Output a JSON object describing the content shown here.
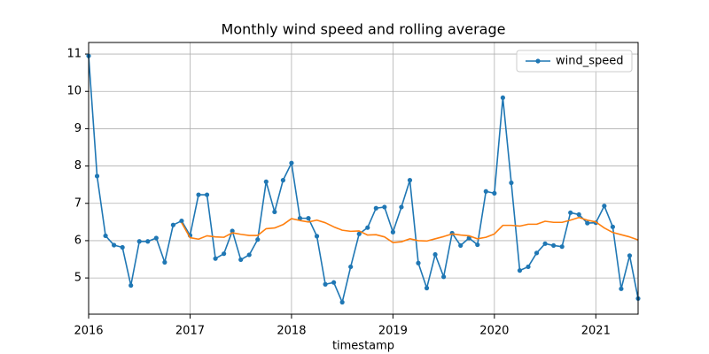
{
  "chart_data": {
    "type": "line",
    "title": "Monthly wind speed and rolling average",
    "xlabel": "timestamp",
    "x": [
      "2016-01",
      "2016-02",
      "2016-03",
      "2016-04",
      "2016-05",
      "2016-06",
      "2016-07",
      "2016-08",
      "2016-09",
      "2016-10",
      "2016-11",
      "2016-12",
      "2017-01",
      "2017-02",
      "2017-03",
      "2017-04",
      "2017-05",
      "2017-06",
      "2017-07",
      "2017-08",
      "2017-09",
      "2017-10",
      "2017-11",
      "2017-12",
      "2018-01",
      "2018-02",
      "2018-03",
      "2018-04",
      "2018-05",
      "2018-06",
      "2018-07",
      "2018-08",
      "2018-09",
      "2018-10",
      "2018-11",
      "2018-12",
      "2019-01",
      "2019-02",
      "2019-03",
      "2019-04",
      "2019-05",
      "2019-06",
      "2019-07",
      "2019-08",
      "2019-09",
      "2019-10",
      "2019-11",
      "2019-12",
      "2020-01",
      "2020-02",
      "2020-03",
      "2020-04",
      "2020-05",
      "2020-06",
      "2020-07",
      "2020-08",
      "2020-09",
      "2020-10",
      "2020-11",
      "2020-12",
      "2021-01",
      "2021-02",
      "2021-03",
      "2021-04",
      "2021-05",
      "2021-06"
    ],
    "series": [
      {
        "name": "wind_speed",
        "color": "#1f77b4",
        "marker": true,
        "values": [
          10.95,
          7.73,
          6.13,
          5.88,
          5.82,
          4.8,
          5.98,
          5.98,
          6.07,
          5.42,
          6.42,
          6.53,
          6.14,
          7.23,
          7.23,
          5.52,
          5.65,
          6.26,
          5.49,
          5.62,
          6.03,
          7.58,
          6.77,
          7.62,
          8.08,
          6.6,
          6.6,
          6.12,
          4.83,
          4.88,
          4.35,
          5.3,
          6.18,
          6.35,
          6.87,
          6.9,
          6.23,
          6.9,
          7.62,
          5.4,
          4.73,
          5.63,
          5.03,
          6.2,
          5.87,
          6.07,
          5.89,
          7.32,
          7.27,
          9.83,
          7.55,
          5.2,
          5.3,
          5.67,
          5.92,
          5.87,
          5.84,
          6.75,
          6.7,
          6.47,
          6.48,
          6.93,
          6.37,
          4.71,
          5.6,
          4.45
        ]
      },
      {
        "color": "#ff7f0e",
        "marker": false,
        "values": [
          null,
          null,
          null,
          null,
          null,
          null,
          null,
          null,
          null,
          null,
          null,
          6.48,
          6.08,
          6.04,
          6.13,
          6.1,
          6.09,
          6.21,
          6.17,
          6.14,
          6.14,
          6.32,
          6.34,
          6.43,
          6.59,
          6.54,
          6.5,
          6.55,
          6.48,
          6.37,
          6.28,
          6.25,
          6.26,
          6.15,
          6.16,
          6.1,
          5.95,
          5.97,
          6.05,
          6.0,
          5.99,
          6.05,
          6.11,
          6.18,
          6.15,
          6.13,
          6.05,
          6.09,
          6.18,
          6.41,
          6.41,
          6.39,
          6.44,
          6.44,
          6.52,
          6.49,
          6.49,
          6.55,
          6.62,
          6.55,
          6.5,
          6.34,
          6.22,
          6.16,
          6.1,
          6.02
        ]
      }
    ],
    "xlim": [
      "2016-01",
      "2021-06"
    ],
    "xticks": [
      {
        "value": "2016-01",
        "label": "2016"
      },
      {
        "value": "2017-01",
        "label": "2017"
      },
      {
        "value": "2018-01",
        "label": "2018"
      },
      {
        "value": "2019-01",
        "label": "2019"
      },
      {
        "value": "2020-01",
        "label": "2020"
      },
      {
        "value": "2021-01",
        "label": "2021"
      }
    ],
    "ylim": [
      4.03,
      11.31
    ],
    "yticks": [
      5,
      6,
      7,
      8,
      9,
      10,
      11
    ],
    "grid": true,
    "legend": "upper right"
  }
}
